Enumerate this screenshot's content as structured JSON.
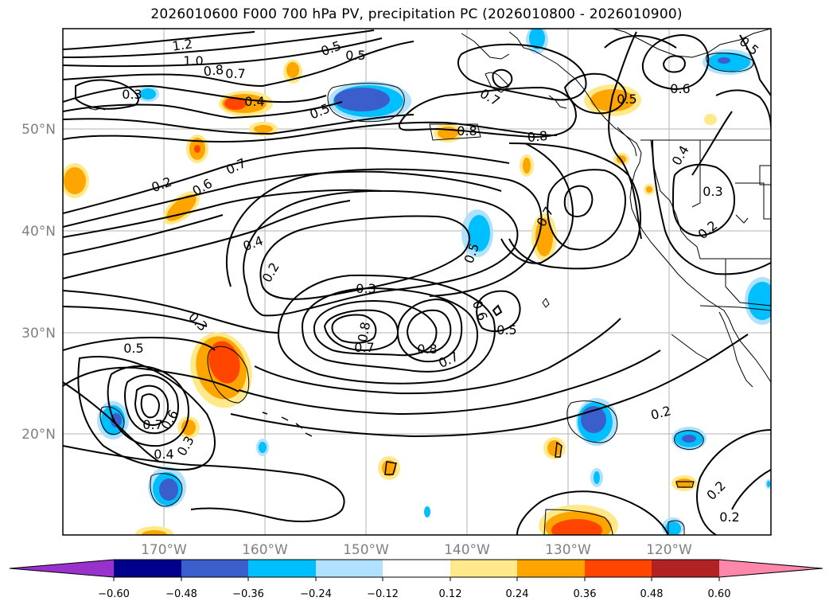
{
  "title": "2026010600 F000 700 hPa PV, precipitation PC (2026010800 - 2026010900)",
  "lat_labels": [
    "50°N",
    "40°N",
    "30°N",
    "20°N"
  ],
  "lon_labels": [
    "170°W",
    "160°W",
    "150°W",
    "140°W",
    "130°W",
    "120°W"
  ],
  "colorbar": {
    "ticks": [
      "−0.60",
      "−0.48",
      "−0.36",
      "−0.24",
      "−0.12",
      "0.12",
      "0.24",
      "0.36",
      "0.48",
      "0.60"
    ],
    "colors": [
      "#9932cc",
      "#00008b",
      "#3a5fcd",
      "#00bfff",
      "#b0e2ff",
      "#ffffff",
      "#ffe98a",
      "#ffa500",
      "#ff4500",
      "#b22222",
      "#ff88aa"
    ]
  },
  "contour_labels": [
    "1.2",
    "1.0",
    "0.8",
    "0.7",
    "0.3",
    "0.4",
    "0.5",
    "0.5",
    "0.5",
    "0.7",
    "0.8",
    "0.8",
    "0.5",
    "0.6",
    "0.5",
    "0.2",
    "0.6",
    "0.7",
    "0.4",
    "0.2",
    "0.3",
    "0.5",
    "0.7",
    "0.4",
    "0.3",
    "0.2",
    "0.3",
    "0.8",
    "0.7",
    "0.8",
    "0.7",
    "0.6",
    "0.5",
    "0.5",
    "0.7",
    "0.6",
    "0.4",
    "0.3",
    "0.2",
    "0.2",
    "0.2",
    "0.3"
  ]
}
